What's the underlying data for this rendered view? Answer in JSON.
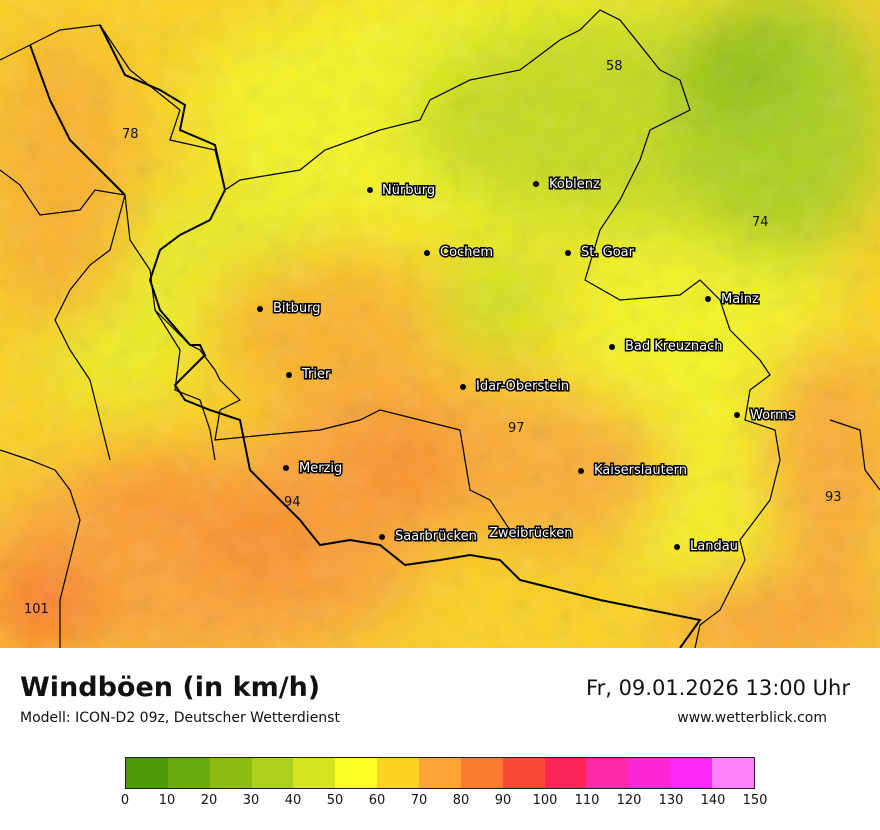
{
  "map": {
    "cities": [
      {
        "name": "Nürburg"
      },
      {
        "name": "Koblenz"
      },
      {
        "name": "Cochem"
      },
      {
        "name": "St. Goar"
      },
      {
        "name": "Bitburg"
      },
      {
        "name": "Mainz"
      },
      {
        "name": "Bad Kreuznach"
      },
      {
        "name": "Trier"
      },
      {
        "name": "Idar-Oberstein"
      },
      {
        "name": "Worms"
      },
      {
        "name": "Merzig"
      },
      {
        "name": "Kaiserslautern"
      },
      {
        "name": "Saarbrücken"
      },
      {
        "name": "Zweibrücken"
      },
      {
        "name": "Landau"
      }
    ],
    "values": [
      "58",
      "78",
      "74",
      "97",
      "94",
      "93",
      "101"
    ]
  },
  "footer": {
    "title": "Windböen (in km/h)",
    "subtitle": "Modell: ICON-D2 09z, Deutscher Wetterdienst",
    "datetime": "Fr, 09.01.2026 13:00 Uhr",
    "website": "www.wetterblick.com"
  },
  "legend": {
    "colors": [
      "#4a9a06",
      "#6aaa0c",
      "#8cbb12",
      "#acd01c",
      "#d4e41e",
      "#fbff24",
      "#fbd220",
      "#fba434",
      "#fb7a2c",
      "#fb4a34",
      "#fb2458",
      "#fb28a8",
      "#fb26d4",
      "#fb28f8",
      "#fd80f8"
    ],
    "ticks": [
      "0",
      "10",
      "20",
      "30",
      "40",
      "50",
      "60",
      "70",
      "80",
      "90",
      "100",
      "110",
      "120",
      "130",
      "140",
      "150"
    ]
  }
}
